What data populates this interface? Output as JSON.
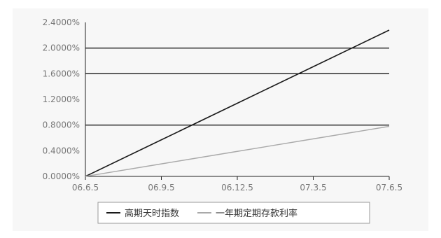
{
  "chart_data": {
    "type": "line",
    "x": [
      "06.6.5",
      "06.9.5",
      "06.12.5",
      "07.3.5",
      "07.6.5"
    ],
    "yticks": [
      "0.0000%",
      "0.4000%",
      "0.8000%",
      "1.2000%",
      "1.6000%",
      "2.0000%",
      "2.4000%"
    ],
    "ylim": [
      0,
      2.4
    ],
    "gridlines": [
      0.8,
      1.6,
      2.0
    ],
    "legend_position": "bottom",
    "series": [
      {
        "name": "高期天时指数",
        "color": "#1a1a1a",
        "x": [
          0,
          1,
          2,
          3,
          4
        ],
        "y": [
          0.0,
          0.57,
          1.14,
          1.71,
          2.28
        ]
      },
      {
        "name": "一年期定期存款利率",
        "color": "#a9a9a9",
        "x": [
          0,
          1,
          2,
          3,
          4
        ],
        "y": [
          0.0,
          0.195,
          0.39,
          0.585,
          0.78
        ]
      }
    ]
  }
}
